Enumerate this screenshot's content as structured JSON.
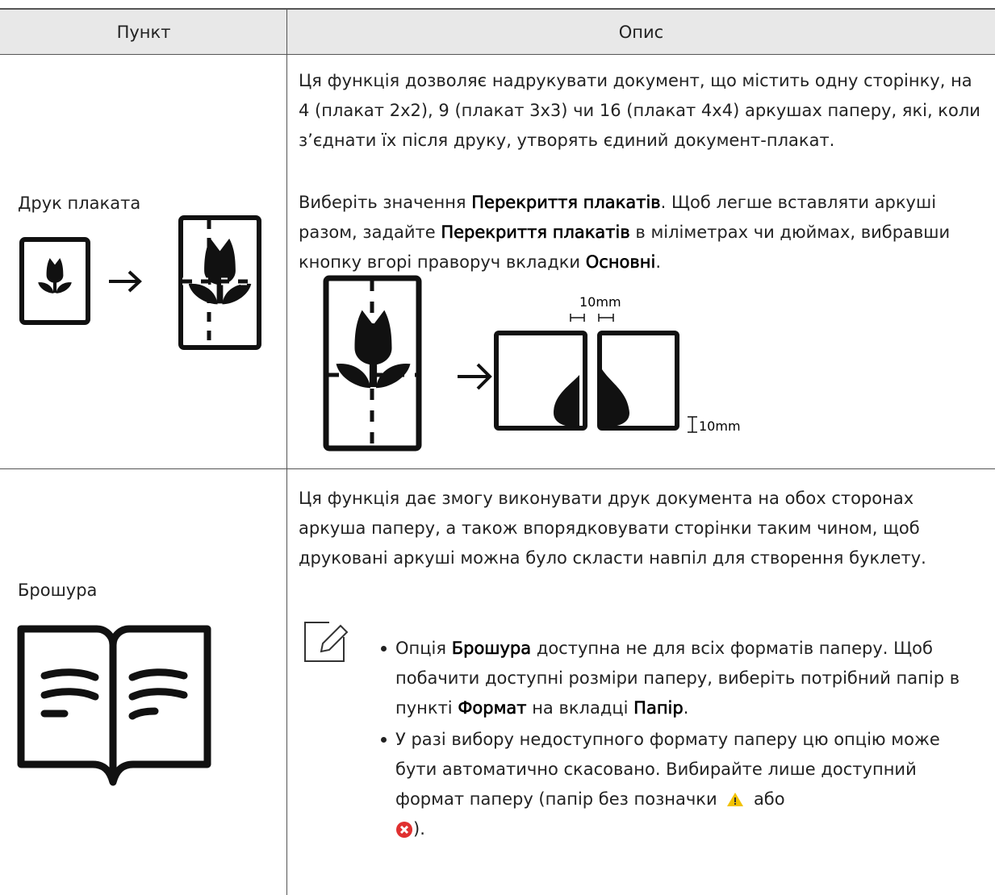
{
  "table": {
    "header": [
      "Пункт",
      "Опис"
    ],
    "rows": [
      {
        "item": "Друк плаката",
        "description": [
          [
            "Ця функція дозволяє надрукувати документ, що містить одну сторінку, на 4 (плакат 2x2), 9 (плакат 3x3) чи 16 (плакат 4x4) аркушах паперу, які, коли з’єднати їх після друку, утворять єдиний документ-плакат."
          ],
          [
            "Виберіть значення ",
            "Перекриття плакатів",
            ". Щоб легше вставляти аркуші разом, задайте ",
            "Перекриття плакатів",
            " в міліметрах чи дюймах, вибравши кнопку вгорі праворуч вкладки ",
            "Основні",
            "."
          ]
        ],
        "figure_labels": [
          "10mm",
          "10mm"
        ]
      },
      {
        "item": "Брошура",
        "description": [
          [
            "Ця функція дає змогу виконувати друк документа на обох сторонах аркуша паперу, а також впорядковувати сторінки таким чином, щоб друковані аркуші можна було скласти навпіл для створення буклету."
          ]
        ],
        "notes": [
          [
            "Опція ",
            "Брошура",
            " доступна не для всіх форматів паперу. Щоб побачити доступні розміри паперу, виберіть потрібний папір в пункті ",
            "Формат",
            " на вкладці ",
            "Папір",
            "."
          ],
          [
            "У разі вибору недоступного формату паперу цю опцію може бути автоматично скасовано. Вибирайте лише доступний формат паперу (папір без позначки ",
            " або ",
            ")."
          ]
        ]
      }
    ]
  }
}
